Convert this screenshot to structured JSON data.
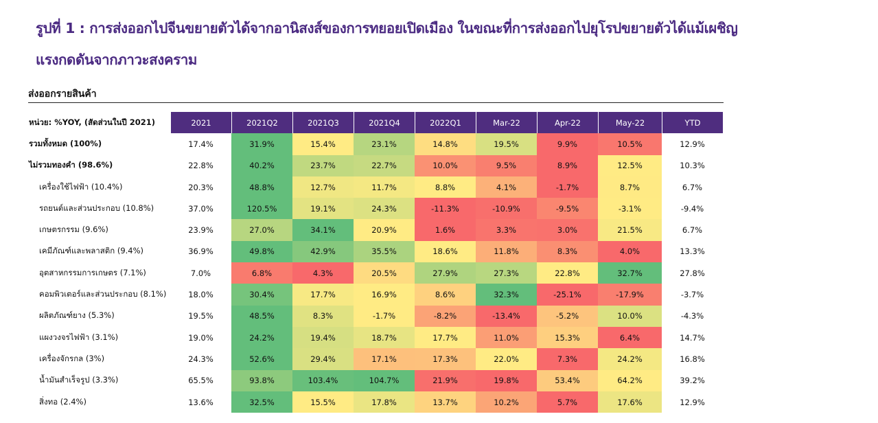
{
  "title_line1": "รูปที่ 1 : การส่งออกไปจีนขยายตัวได้จากอานิสงส์ของการทยอยเปิดเมือง ในขณะที่การส่งออกไปยุโรปขยายตัวได้แม้เผชิญ",
  "title_line2": "แรงกดดันจากภาวะสงคราม",
  "subheading": "ส่งออกรายสินค้า",
  "colors": {
    "header_bg": "#4f2d7f",
    "title": "#4b2a82",
    "scale_low": "#f8696b",
    "scale_mid": "#ffeb84",
    "scale_high": "#63be7b"
  },
  "chart_data": {
    "type": "heatmap",
    "unit_label": "หน่วย: %YOY, (สัดส่วนในปี 2021)",
    "columns": [
      "2021",
      "2021Q2",
      "2021Q3",
      "2021Q4",
      "2022Q1",
      "Mar-22",
      "Apr-22",
      "May-22",
      "YTD"
    ],
    "colored_columns": [
      "2021Q2",
      "2021Q3",
      "2021Q4",
      "2022Q1",
      "Mar-22",
      "Apr-22",
      "May-22"
    ],
    "rows": [
      {
        "label": "รวมทั้งหมด (100%)",
        "bold": true,
        "values": [
          17.4,
          31.9,
          15.4,
          23.1,
          14.8,
          19.5,
          9.9,
          10.5,
          12.9
        ],
        "text": [
          "17.4%",
          "31.9%",
          "15.4%",
          "23.1%",
          "14.8%",
          "19.5%",
          "9.9%",
          "10.5%",
          "12.9%"
        ]
      },
      {
        "label": "ไม่รวมทองคำ (98.6%)",
        "bold": true,
        "values": [
          22.8,
          40.2,
          23.7,
          22.7,
          10.0,
          9.5,
          8.9,
          12.5,
          10.3
        ],
        "text": [
          "22.8%",
          "40.2%",
          "23.7%",
          "22.7%",
          "10.0%",
          "9.5%",
          "8.9%",
          "12.5%",
          "10.3%"
        ]
      },
      {
        "label": "เครื่องใช้ไฟฟ้า (10.4%)",
        "bold": false,
        "values": [
          20.3,
          48.8,
          12.7,
          11.7,
          8.8,
          4.1,
          -1.7,
          8.7,
          6.7
        ],
        "text": [
          "20.3%",
          "48.8%",
          "12.7%",
          "11.7%",
          "8.8%",
          "4.1%",
          "-1.7%",
          "8.7%",
          "6.7%"
        ]
      },
      {
        "label": "รถยนต์และส่วนประกอบ (10.8%)",
        "bold": false,
        "values": [
          37.0,
          120.5,
          19.1,
          24.3,
          -11.3,
          -10.9,
          -9.5,
          -3.1,
          -9.4
        ],
        "text": [
          "37.0%",
          "120.5%",
          "19.1%",
          "24.3%",
          "-11.3%",
          "-10.9%",
          "-9.5%",
          "-3.1%",
          "-9.4%"
        ]
      },
      {
        "label": "เกษตรกรรม (9.6%)",
        "bold": false,
        "values": [
          23.9,
          27.0,
          34.1,
          20.9,
          1.6,
          3.3,
          3.0,
          21.5,
          6.7
        ],
        "text": [
          "23.9%",
          "27.0%",
          "34.1%",
          "20.9%",
          "1.6%",
          "3.3%",
          "3.0%",
          "21.5%",
          "6.7%"
        ]
      },
      {
        "label": "เคมีภัณฑ์และพลาสติก (9.4%)",
        "bold": false,
        "values": [
          36.9,
          49.8,
          42.9,
          35.5,
          18.6,
          11.8,
          8.3,
          4.0,
          13.3
        ],
        "text": [
          "36.9%",
          "49.8%",
          "42.9%",
          "35.5%",
          "18.6%",
          "11.8%",
          "8.3%",
          "4.0%",
          "13.3%"
        ]
      },
      {
        "label": "อุตสาหกรรมการเกษตร (7.1%)",
        "bold": false,
        "values": [
          7.0,
          6.8,
          4.3,
          20.5,
          27.9,
          27.3,
          22.8,
          32.7,
          27.8
        ],
        "text": [
          "7.0%",
          "6.8%",
          "4.3%",
          "20.5%",
          "27.9%",
          "27.3%",
          "22.8%",
          "32.7%",
          "27.8%"
        ]
      },
      {
        "label": "คอมพิวเตอร์และส่วนประกอบ (8.1%)",
        "bold": false,
        "values": [
          18.0,
          30.4,
          17.7,
          16.9,
          8.6,
          32.3,
          -25.1,
          -17.9,
          -3.7
        ],
        "text": [
          "18.0%",
          "30.4%",
          "17.7%",
          "16.9%",
          "8.6%",
          "32.3%",
          "-25.1%",
          "-17.9%",
          "-3.7%"
        ]
      },
      {
        "label": "ผลิตภัณฑ์ยาง (5.3%)",
        "bold": false,
        "values": [
          19.5,
          48.5,
          8.3,
          -1.7,
          -8.2,
          -13.4,
          -5.2,
          10.0,
          -4.3
        ],
        "text": [
          "19.5%",
          "48.5%",
          "8.3%",
          "-1.7%",
          "-8.2%",
          "-13.4%",
          "-5.2%",
          "10.0%",
          "-4.3%"
        ]
      },
      {
        "label": "แผงวงจรไฟฟ้า (3.1%)",
        "bold": false,
        "values": [
          19.0,
          24.2,
          19.4,
          18.7,
          17.7,
          11.0,
          15.3,
          6.4,
          14.7
        ],
        "text": [
          "19.0%",
          "24.2%",
          "19.4%",
          "18.7%",
          "17.7%",
          "11.0%",
          "15.3%",
          "6.4%",
          "14.7%"
        ]
      },
      {
        "label": "เครื่องจักรกล (3%)",
        "bold": false,
        "values": [
          24.3,
          52.6,
          29.4,
          17.1,
          17.3,
          22.0,
          7.3,
          24.2,
          16.8
        ],
        "text": [
          "24.3%",
          "52.6%",
          "29.4%",
          "17.1%",
          "17.3%",
          "22.0%",
          "7.3%",
          "24.2%",
          "16.8%"
        ]
      },
      {
        "label": "น้ำมันสำเร็จรูป (3.3%)",
        "bold": false,
        "values": [
          65.5,
          93.8,
          103.4,
          104.7,
          21.9,
          19.8,
          53.4,
          64.2,
          39.2
        ],
        "text": [
          "65.5%",
          "93.8%",
          "103.4%",
          "104.7%",
          "21.9%",
          "19.8%",
          "53.4%",
          "64.2%",
          "39.2%"
        ]
      },
      {
        "label": "สิ่งทอ (2.4%)",
        "bold": false,
        "values": [
          13.6,
          32.5,
          15.5,
          17.8,
          13.7,
          10.2,
          5.7,
          17.6,
          12.9
        ],
        "text": [
          "13.6%",
          "32.5%",
          "15.5%",
          "17.8%",
          "13.7%",
          "10.2%",
          "5.7%",
          "17.6%",
          "12.9%"
        ]
      }
    ]
  }
}
